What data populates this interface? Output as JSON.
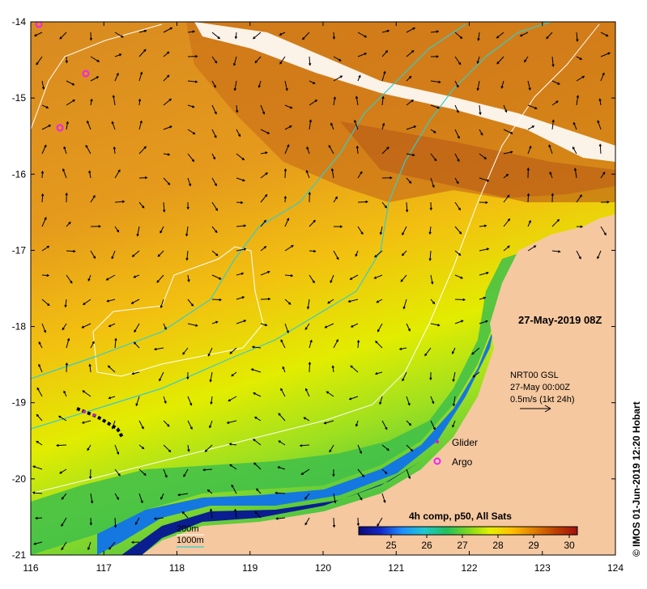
{
  "map": {
    "date_label": "27-May-2019 08Z",
    "credit": "© IMOS 01-Jun-2019 12:20 Hobart",
    "x_ticks": [
      "116",
      "117",
      "118",
      "119",
      "120",
      "121",
      "122",
      "123",
      "124"
    ],
    "y_ticks": [
      "-14",
      "-15",
      "-16",
      "-17",
      "-18",
      "-19",
      "-20",
      "-21"
    ],
    "current_legend": {
      "line1": "NRT00 GSL",
      "line2": "27-May 00:00Z",
      "line3": "0.5m/s (1kt 24h)"
    },
    "platform_legend": [
      {
        "label": "Glider",
        "color": "#cc22cc"
      },
      {
        "label": "Argo",
        "color": "#ee22ee"
      }
    ],
    "isobath_legend": [
      {
        "label": "200m",
        "color": "#ffffff"
      },
      {
        "label": "1000m",
        "color": "#33cccc"
      }
    ],
    "colorbar": {
      "title": "4h comp, p50, All Sats",
      "ticks": [
        "25",
        "26",
        "27",
        "28",
        "29",
        "30"
      ],
      "stops": [
        "#0a0a78",
        "#1428c8",
        "#1e90ff",
        "#20c8d0",
        "#20c060",
        "#7cd820",
        "#e6f000",
        "#ffc000",
        "#e08000",
        "#c04000",
        "#a01010"
      ]
    },
    "colors": {
      "land": "#f5c8a0",
      "warm": "#d88a20",
      "mid": "#e8a818",
      "cool": "#d4e800",
      "green": "#50c040",
      "blue": "#1478e0",
      "deep": "#0a1e90"
    }
  }
}
